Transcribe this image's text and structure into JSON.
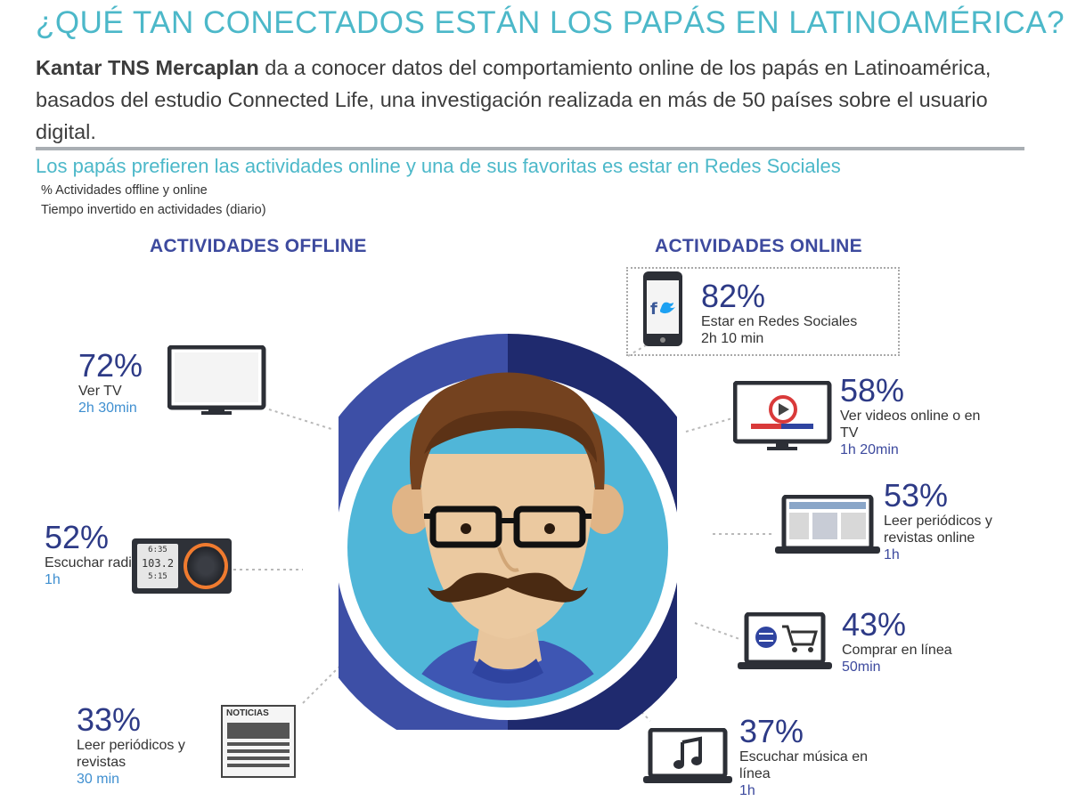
{
  "header": {
    "title": "¿QUÉ TAN CONECTADOS ESTÁN LOS PAPÁS EN LATINOAMÉRICA?",
    "intro_bold": "Kantar TNS Mercaplan",
    "intro_rest": " da a conocer datos del comportamiento online de los papás en Latinoamérica, basados del estudio Connected Life, una investigación realizada en más de 50 países sobre el usuario digital.",
    "subheading": "Los papás prefieren las actividades online y una de sus favoritas es estar en Redes Sociales",
    "note1": "% Actividades offline y online",
    "note2": "Tiempo invertido en actividades (diario)"
  },
  "offline": {
    "title": "ACTIVIDADES OFFLINE",
    "items": [
      {
        "pct": "72%",
        "label": "Ver TV",
        "time": "2h 30min",
        "icon": "tv-icon"
      },
      {
        "pct": "52%",
        "label": "Escuchar radio",
        "time": "1h",
        "icon": "radio-icon",
        "radio_lines": [
          "6:35",
          "103.2",
          "5:15"
        ]
      },
      {
        "pct": "33%",
        "label": "Leer periódicos y revistas",
        "time": "30 min",
        "icon": "newspaper-icon",
        "newspaper_word": "NOTICIAS"
      }
    ]
  },
  "online": {
    "title": "ACTIVIDADES ONLINE",
    "items": [
      {
        "pct": "82%",
        "label": "Estar en Redes Sociales",
        "time": "2h 10 min",
        "icon": "smartphone-social-icon"
      },
      {
        "pct": "58%",
        "label": "Ver videos online o en TV",
        "time": "1h 20min",
        "icon": "monitor-video-icon"
      },
      {
        "pct": "53%",
        "label": "Leer periódicos y revistas online",
        "time": "1h",
        "icon": "laptop-news-icon"
      },
      {
        "pct": "43%",
        "label": "Comprar en línea",
        "time": "50min",
        "icon": "laptop-cart-icon"
      },
      {
        "pct": "37%",
        "label": "Escuchar música en línea",
        "time": "1h",
        "icon": "laptop-music-icon"
      }
    ]
  },
  "colors": {
    "teal": "#4cb8c9",
    "navy": "#2d3a86",
    "ring_left": "#3d4fa6",
    "ring_right": "#1f2a6e",
    "face_bg": "#50b6d8",
    "time_blue": "#3f8fd0"
  }
}
